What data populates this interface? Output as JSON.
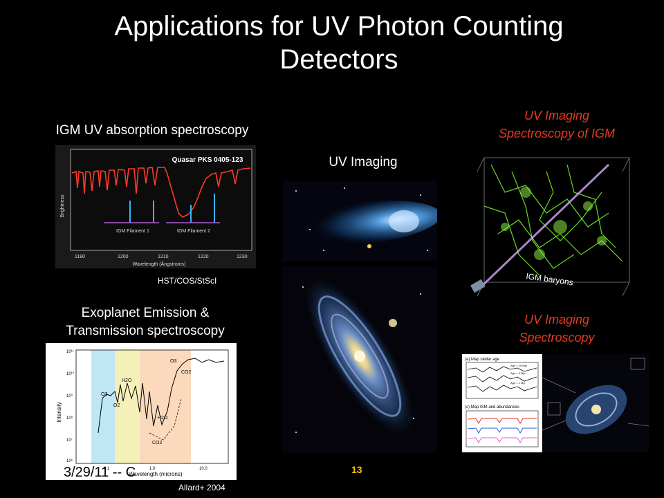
{
  "slide": {
    "title_line1": "Applications for UV Photon Counting",
    "title_line2": "Detectors",
    "page_number": "13",
    "footer_date": "3/29/11 -- C"
  },
  "igm": {
    "caption": "IGM UV absorption spectroscopy",
    "credit": "HST/COS/StScI",
    "plot_title": "Quasar PKS 0405-123",
    "ylabel": "Brightness",
    "xlabel": "Wavelength (Ångstroms)",
    "ticks": [
      "1190",
      "1200",
      "1210",
      "1220",
      "1230"
    ],
    "filament1": "IGM Filament 1",
    "filament2": "IGM Filament 2"
  },
  "uv_imaging": {
    "caption": "UV Imaging"
  },
  "igm_imaging": {
    "caption_line1": "UV Imaging",
    "caption_line2": "Spectroscopy of IGM",
    "baryons_label": "IGM baryons"
  },
  "exoplanet": {
    "caption_line1": "Exoplanet Emission &",
    "caption_line2": "Transmission spectroscopy",
    "credit": "Allard+ 2004",
    "ylabel": "Intensity",
    "xlabel": "Wavelength (microns)",
    "labels": [
      "O3",
      "O2",
      "H2O",
      "O3",
      "CO2",
      "H2O",
      "CO2"
    ],
    "yticks": [
      "10¹¹",
      "10¹⁰",
      "10⁹",
      "10⁸",
      "10⁷",
      "10⁶"
    ],
    "xticks": [
      "0.1",
      "1.0",
      "10.0"
    ]
  },
  "uv_spec": {
    "caption_line1": "UV Imaging",
    "caption_line2": "Spectroscopy",
    "panel_a": "(a) Map stellar age",
    "panel_c": "(c) Map ISM and abundances",
    "ages": [
      "Age = 20 Myr",
      "Age = 5 Myr",
      "Age = 1 Myr"
    ]
  },
  "colors": {
    "background": "#000000",
    "accent_red": "#e53a1d",
    "page_number": "#f5c400"
  }
}
